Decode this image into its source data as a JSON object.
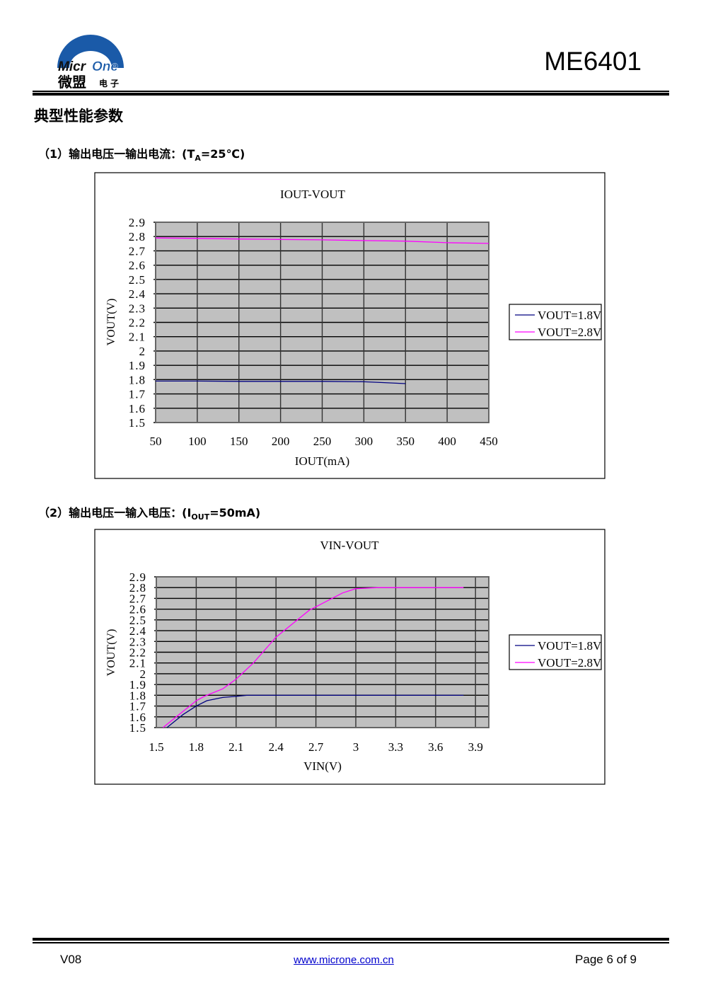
{
  "header": {
    "logo": {
      "brand": "MicrOne",
      "brand_cn": "微盟",
      "brand_cn_suffix": "电子",
      "color": "#1a5aa8"
    },
    "doc_id": "ME6401"
  },
  "section_title": "典型性能参数",
  "subsections": [
    {
      "prefix": "（1）输出电压一输出电流：(T",
      "subscript": "A",
      "suffix": "=25℃)"
    },
    {
      "prefix": "（2）输出电压一输入电压：(I",
      "subscript": "OUT",
      "suffix": "=50mA)"
    }
  ],
  "chart_data": [
    {
      "type": "line",
      "title": "IOUT-VOUT",
      "xlabel": "IOUT(mA)",
      "ylabel": "VOUT(V)",
      "xlim": [
        50,
        450
      ],
      "ylim": [
        1.5,
        2.9
      ],
      "x_ticks": [
        "50",
        "100",
        "150",
        "200",
        "250",
        "300",
        "350",
        "400",
        "450"
      ],
      "y_ticks": [
        "2.9",
        "2.8",
        "2.7",
        "2.6",
        "2.5",
        "2.4",
        "2.3",
        "2.2",
        "2.1",
        "2",
        "1.9",
        "1.8",
        "1.7",
        "1.6",
        "1.5"
      ],
      "grid": true,
      "plot_background": "#c0c0c0",
      "legend_position": "right",
      "series": [
        {
          "name": "VOUT=1.8V",
          "color": "#000080",
          "x": [
            50,
            100,
            150,
            200,
            250,
            300,
            320,
            350
          ],
          "y": [
            1.79,
            1.79,
            1.788,
            1.788,
            1.788,
            1.785,
            1.78,
            1.772
          ]
        },
        {
          "name": "VOUT=2.8V",
          "color": "#ff00ff",
          "x": [
            50,
            100,
            150,
            200,
            250,
            300,
            350,
            400,
            450
          ],
          "y": [
            2.79,
            2.787,
            2.783,
            2.78,
            2.777,
            2.772,
            2.768,
            2.757,
            2.752
          ]
        }
      ]
    },
    {
      "type": "line",
      "title": "VIN-VOUT",
      "xlabel": "VIN(V)",
      "ylabel": "VOUT(V)",
      "xlim": [
        1.5,
        4.0
      ],
      "ylim": [
        1.5,
        2.9
      ],
      "x_ticks": [
        "1.5",
        "1.8",
        "2.1",
        "2.4",
        "2.7",
        "3",
        "3.3",
        "3.6",
        "3.9"
      ],
      "y_ticks": [
        "2.9",
        "2.8",
        "2.7",
        "2.6",
        "2.5",
        "2.4",
        "2.3",
        "2.2",
        "2.1",
        "2",
        "1.9",
        "1.8",
        "1.7",
        "1.6",
        "1.5"
      ],
      "grid": true,
      "plot_background": "#c0c0c0",
      "legend_position": "right",
      "series": [
        {
          "name": "VOUT=1.8V",
          "color": "#000080",
          "x": [
            1.58,
            1.7,
            1.8,
            1.88,
            2.0,
            2.1,
            2.18,
            2.4,
            3.0,
            3.5,
            3.81
          ],
          "y": [
            1.5,
            1.62,
            1.7,
            1.75,
            1.78,
            1.79,
            1.8,
            1.8,
            1.8,
            1.8,
            1.8
          ]
        },
        {
          "name": "VOUT=2.8V",
          "color": "#ff00ff",
          "x": [
            1.55,
            1.7,
            1.8,
            1.86,
            2.0,
            2.1,
            2.23,
            2.4,
            2.65,
            2.9,
            3.0,
            3.17,
            3.5,
            3.81
          ],
          "y": [
            1.5,
            1.65,
            1.75,
            1.79,
            1.86,
            1.95,
            2.1,
            2.34,
            2.59,
            2.75,
            2.79,
            2.8,
            2.8,
            2.8
          ]
        }
      ]
    }
  ],
  "footer": {
    "version": "V08",
    "link": "www.microne.com.cn",
    "page": "Page 6 of 9"
  }
}
